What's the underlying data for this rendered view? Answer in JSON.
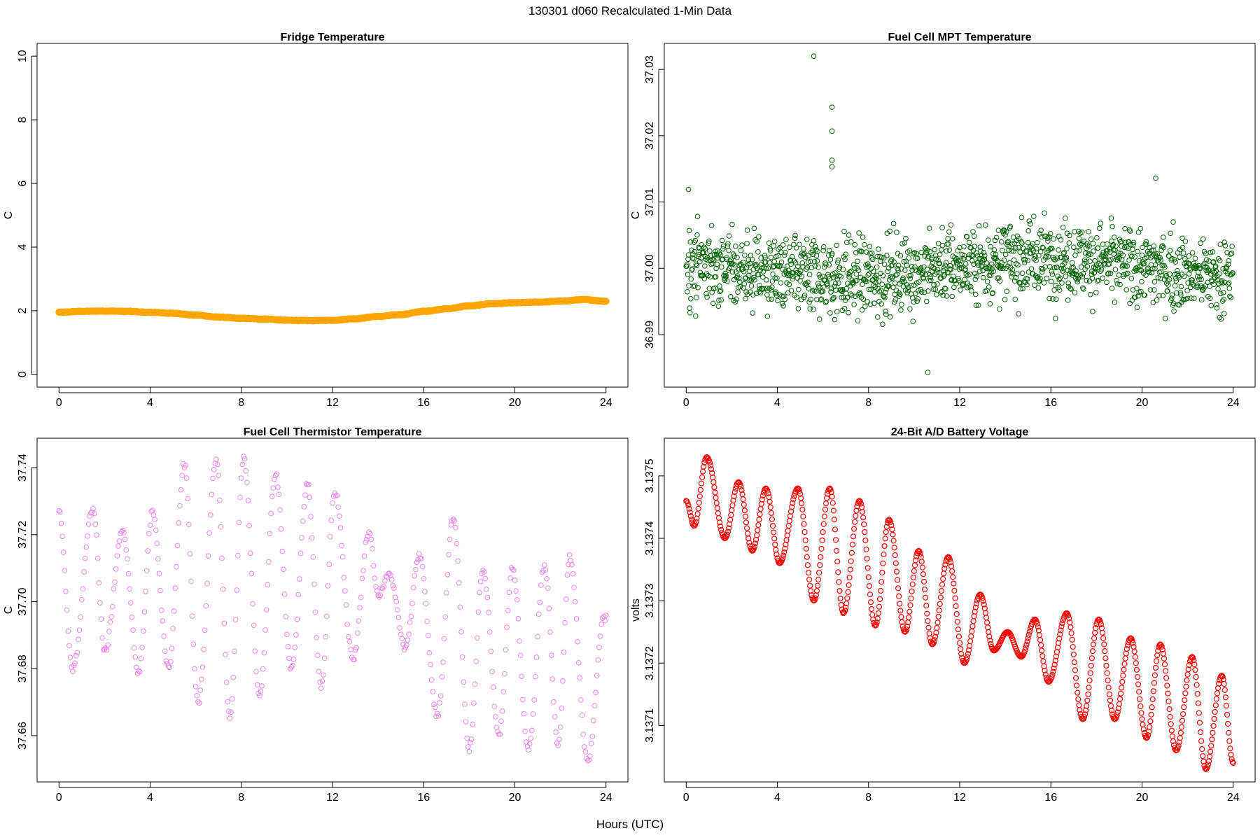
{
  "figure": {
    "title": "130301   d060   Recalculated 1-Min Data",
    "xlabel": "Hours (UTC)"
  },
  "chart_data": [
    {
      "type": "scatter",
      "title": "Fridge Temperature",
      "xlabel": "Hours (UTC)",
      "ylabel": "C",
      "xlim": [
        0,
        24
      ],
      "ylim": [
        0,
        10
      ],
      "xticks": [
        0,
        4,
        8,
        12,
        16,
        20,
        24
      ],
      "yticks": [
        0,
        2,
        4,
        6,
        8,
        10
      ],
      "color": "#FFA500",
      "marker": "open-circle",
      "series": [
        {
          "name": "Fridge Temperature",
          "x": [
            0,
            1,
            2,
            3,
            4,
            5,
            6,
            7,
            8,
            9,
            10,
            11,
            12,
            13,
            14,
            15,
            16,
            17,
            18,
            19,
            20,
            21,
            22,
            23,
            24
          ],
          "y": [
            1.95,
            1.98,
            1.99,
            1.98,
            1.95,
            1.92,
            1.86,
            1.8,
            1.76,
            1.74,
            1.7,
            1.69,
            1.7,
            1.75,
            1.82,
            1.88,
            1.98,
            2.06,
            2.15,
            2.22,
            2.25,
            2.27,
            2.3,
            2.35,
            2.3
          ]
        }
      ]
    },
    {
      "type": "scatter",
      "title": "Fuel Cell MPT Temperature",
      "xlabel": "Hours (UTC)",
      "ylabel": "C",
      "xlim": [
        0,
        24
      ],
      "ylim": [
        36.984,
        37.032
      ],
      "xticks": [
        0,
        4,
        8,
        12,
        16,
        20,
        24
      ],
      "yticks": [
        36.99,
        37.0,
        37.01,
        37.02,
        37.03
      ],
      "ytick_labels": [
        "36.99",
        "37.00",
        "37.01",
        "37.02",
        "37.03"
      ],
      "color": "#006400",
      "marker": "open-circle",
      "series": [
        {
          "name": "Fuel Cell MPT Temperature",
          "center": 37.0,
          "spread": 0.005,
          "n_points": 1440,
          "outliers_x": [
            5.6,
            6.4,
            6.4,
            6.4,
            6.4,
            0.1,
            10.6,
            20.6
          ],
          "outliers_y": [
            37.032,
            37.0243,
            37.0207,
            37.0163,
            37.0153,
            37.0119,
            36.9843,
            37.0136
          ]
        }
      ]
    },
    {
      "type": "scatter",
      "title": "Fuel Cell Thermistor Temperature",
      "xlabel": "Hours (UTC)",
      "ylabel": "C",
      "xlim": [
        0,
        24
      ],
      "ylim": [
        37.65,
        37.745
      ],
      "xticks": [
        0,
        4,
        8,
        12,
        16,
        20,
        24
      ],
      "yticks": [
        37.66,
        37.68,
        37.7,
        37.72,
        37.74
      ],
      "ytick_labels": [
        "37.66",
        "37.68",
        "37.70",
        "37.72",
        "37.74"
      ],
      "color": "#EE82EE",
      "marker": "open-circle",
      "series": [
        {
          "name": "Fuel Cell Thermistor Temperature",
          "x": [
            0,
            0.6,
            1.5,
            2.0,
            2.8,
            3.5,
            4.1,
            4.8,
            5.5,
            6.1,
            6.9,
            7.5,
            8.1,
            8.8,
            9.5,
            10.2,
            10.9,
            11.5,
            12.1,
            12.9,
            13.6,
            14.0,
            14.5,
            15.2,
            15.8,
            16.6,
            17.3,
            18.0,
            18.6,
            19.3,
            19.9,
            20.6,
            21.3,
            21.9,
            22.4,
            23.2,
            23.9
          ],
          "y": [
            37.727,
            37.68,
            37.728,
            37.685,
            37.721,
            37.679,
            37.727,
            37.68,
            37.741,
            37.67,
            37.742,
            37.665,
            37.743,
            37.672,
            37.738,
            37.68,
            37.735,
            37.675,
            37.733,
            37.683,
            37.721,
            37.702,
            37.708,
            37.686,
            37.714,
            37.666,
            37.725,
            37.656,
            37.71,
            37.66,
            37.71,
            37.656,
            37.711,
            37.657,
            37.713,
            37.652,
            37.695
          ]
        }
      ]
    },
    {
      "type": "scatter",
      "title": "24-Bit A/D Battery Voltage",
      "xlabel": "Hours (UTC)",
      "ylabel": "volts",
      "xlim": [
        0,
        24
      ],
      "ylim": [
        3.13703,
        3.13754
      ],
      "xticks": [
        0,
        4,
        8,
        12,
        16,
        20,
        24
      ],
      "yticks": [
        3.1371,
        3.1372,
        3.1373,
        3.1374,
        3.1375
      ],
      "ytick_labels": [
        "3.1371",
        "3.1372",
        "3.1373",
        "3.1374",
        "3.1375"
      ],
      "color": "#FF0000",
      "marker": "open-circle",
      "series": [
        {
          "name": "24-Bit A/D Battery Voltage",
          "x": [
            0,
            0.35,
            0.9,
            1.7,
            2.3,
            2.9,
            3.5,
            4.1,
            4.9,
            5.6,
            6.3,
            6.9,
            7.6,
            8.3,
            8.9,
            9.6,
            10.2,
            10.8,
            11.5,
            12.2,
            12.9,
            13.5,
            14.1,
            14.7,
            15.3,
            15.9,
            16.7,
            17.4,
            18.1,
            18.8,
            19.5,
            20.2,
            20.8,
            21.5,
            22.2,
            22.8,
            23.5,
            24.0
          ],
          "y": [
            3.13746,
            3.13742,
            3.13753,
            3.1374,
            3.13749,
            3.13738,
            3.13748,
            3.13736,
            3.13748,
            3.1373,
            3.13748,
            3.13728,
            3.13746,
            3.13726,
            3.13743,
            3.13725,
            3.13738,
            3.13723,
            3.13737,
            3.1372,
            3.13731,
            3.13722,
            3.13725,
            3.13721,
            3.13727,
            3.13717,
            3.13728,
            3.13711,
            3.13727,
            3.13711,
            3.13724,
            3.13708,
            3.13723,
            3.13706,
            3.13721,
            3.13703,
            3.13718,
            3.13704
          ]
        }
      ]
    }
  ]
}
